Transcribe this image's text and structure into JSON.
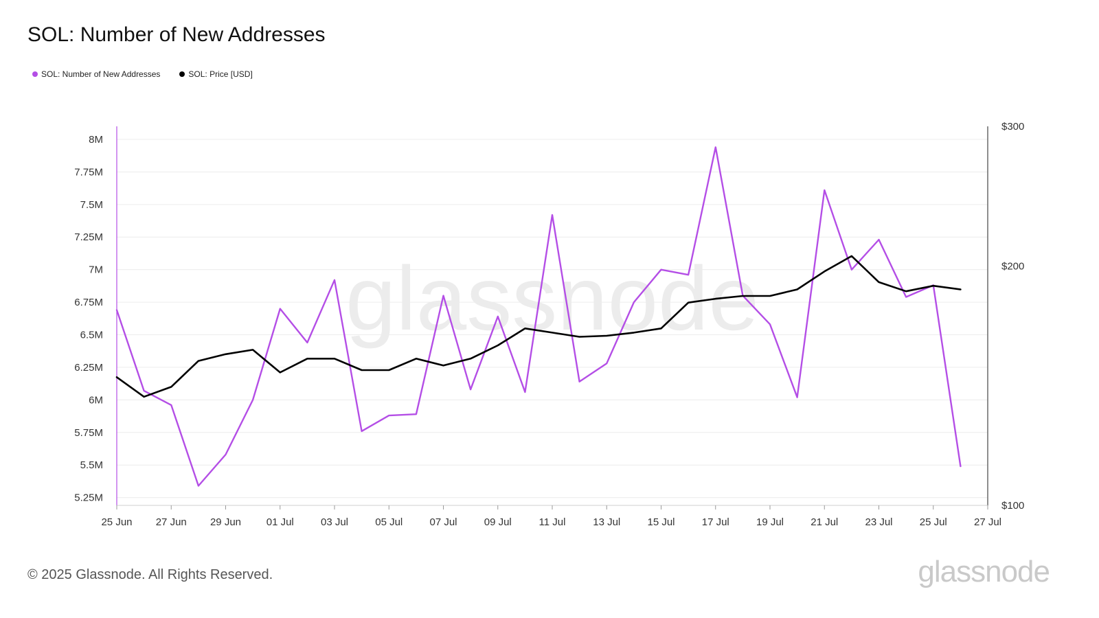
{
  "title": "SOL: Number of New Addresses",
  "legend": [
    {
      "label": "SOL: Number of New Addresses",
      "color": "#b44ee6"
    },
    {
      "label": "SOL: Price [USD]",
      "color": "#000000"
    }
  ],
  "footer": "© 2025 Glassnode. All Rights Reserved.",
  "brand": "glassnode",
  "watermark": "glassnode",
  "chart_data": {
    "type": "line",
    "x": [
      "2025-06-25",
      "2025-06-26",
      "2025-06-27",
      "2025-06-28",
      "2025-06-29",
      "2025-06-30",
      "2025-07-01",
      "2025-07-02",
      "2025-07-03",
      "2025-07-04",
      "2025-07-05",
      "2025-07-06",
      "2025-07-07",
      "2025-07-08",
      "2025-07-09",
      "2025-07-10",
      "2025-07-11",
      "2025-07-12",
      "2025-07-13",
      "2025-07-14",
      "2025-07-15",
      "2025-07-16",
      "2025-07-17",
      "2025-07-18",
      "2025-07-19",
      "2025-07-20",
      "2025-07-21",
      "2025-07-22",
      "2025-07-23",
      "2025-07-24",
      "2025-07-25",
      "2025-07-26"
    ],
    "x_ticks": [
      "25 Jun",
      "27 Jun",
      "29 Jun",
      "01 Jul",
      "03 Jul",
      "05 Jul",
      "07 Jul",
      "09 Jul",
      "11 Jul",
      "13 Jul",
      "15 Jul",
      "17 Jul",
      "19 Jul",
      "21 Jul",
      "23 Jul",
      "25 Jul",
      "27 Jul"
    ],
    "xlim": [
      "2025-06-25",
      "2025-07-27"
    ],
    "y_left": {
      "ticks": [
        "5.25M",
        "5.5M",
        "5.75M",
        "6M",
        "6.25M",
        "6.5M",
        "6.75M",
        "7M",
        "7.25M",
        "7.5M",
        "7.75M",
        "8M"
      ],
      "tick_values": [
        5250000,
        5500000,
        5750000,
        6000000,
        6250000,
        6500000,
        6750000,
        7000000,
        7250000,
        7500000,
        7750000,
        8000000
      ],
      "range": [
        5190000,
        8100000
      ]
    },
    "y_right": {
      "ticks": [
        "$100",
        "$200",
        "$300"
      ],
      "tick_values": [
        100,
        200,
        300
      ],
      "scale": "log",
      "range": [
        100,
        300
      ]
    },
    "series": [
      {
        "name": "SOL: Number of New Addresses",
        "axis": "left",
        "color": "#b44ee6",
        "values": [
          6690000,
          6070000,
          5960000,
          5340000,
          5580000,
          6000000,
          6700000,
          6440000,
          6920000,
          5760000,
          5880000,
          5890000,
          6800000,
          6080000,
          6640000,
          6060000,
          7420000,
          6140000,
          6280000,
          6750000,
          7000000,
          6960000,
          7940000,
          6800000,
          6580000,
          6020000,
          7610000,
          7000000,
          7230000,
          6790000,
          6880000,
          5490000
        ]
      },
      {
        "name": "SOL: Price [USD]",
        "axis": "right",
        "color": "#000000",
        "values": [
          145,
          137,
          141,
          152,
          155,
          157,
          147,
          153,
          153,
          148,
          148,
          153,
          150,
          153,
          159,
          167,
          165,
          163,
          163.5,
          165,
          167,
          180,
          182,
          183.5,
          183.5,
          187,
          197,
          206,
          191,
          186,
          189,
          187
        ]
      }
    ],
    "grid": true,
    "legend_position": "top-left"
  }
}
